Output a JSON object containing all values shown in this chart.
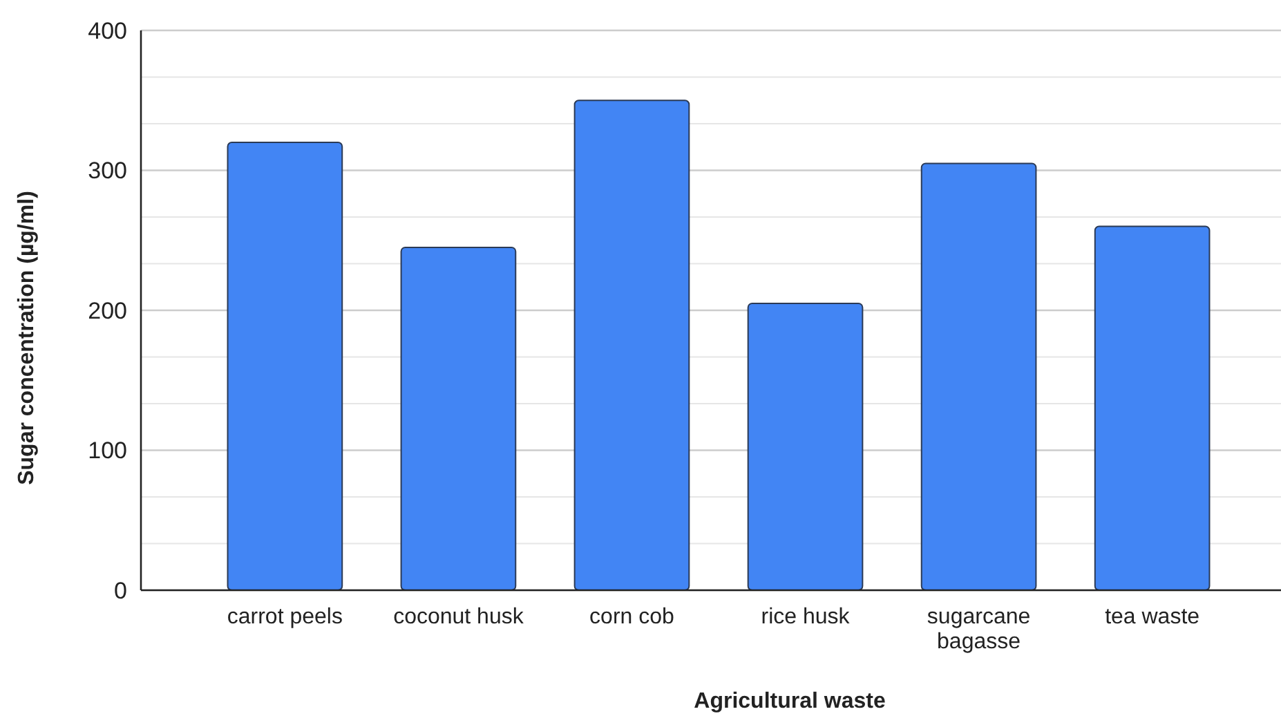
{
  "chart_data": {
    "type": "bar",
    "xlabel": "Agricultural waste",
    "ylabel": "Sugar concentration (µg/ml)",
    "categories": [
      "carrot peels",
      "coconut husk",
      "corn cob",
      "rice husk",
      "sugarcane bagasse",
      "tea waste"
    ],
    "values": [
      320,
      245,
      350,
      205,
      305,
      260
    ],
    "color": "#4285f4",
    "ylim": [
      0,
      400
    ],
    "yticks": [
      0,
      {
        "value": 33.3,
        "label": null
      },
      {
        "value": 66.7,
        "label": null
      },
      100,
      {
        "value": 133.3,
        "label": null
      },
      {
        "value": 166.7,
        "label": null
      },
      200,
      {
        "value": 233.3,
        "label": null
      },
      {
        "value": 266.7,
        "label": null
      },
      300,
      {
        "value": 333.3,
        "label": null
      },
      {
        "value": 366.7,
        "label": null
      },
      400
    ],
    "grid": true
  }
}
